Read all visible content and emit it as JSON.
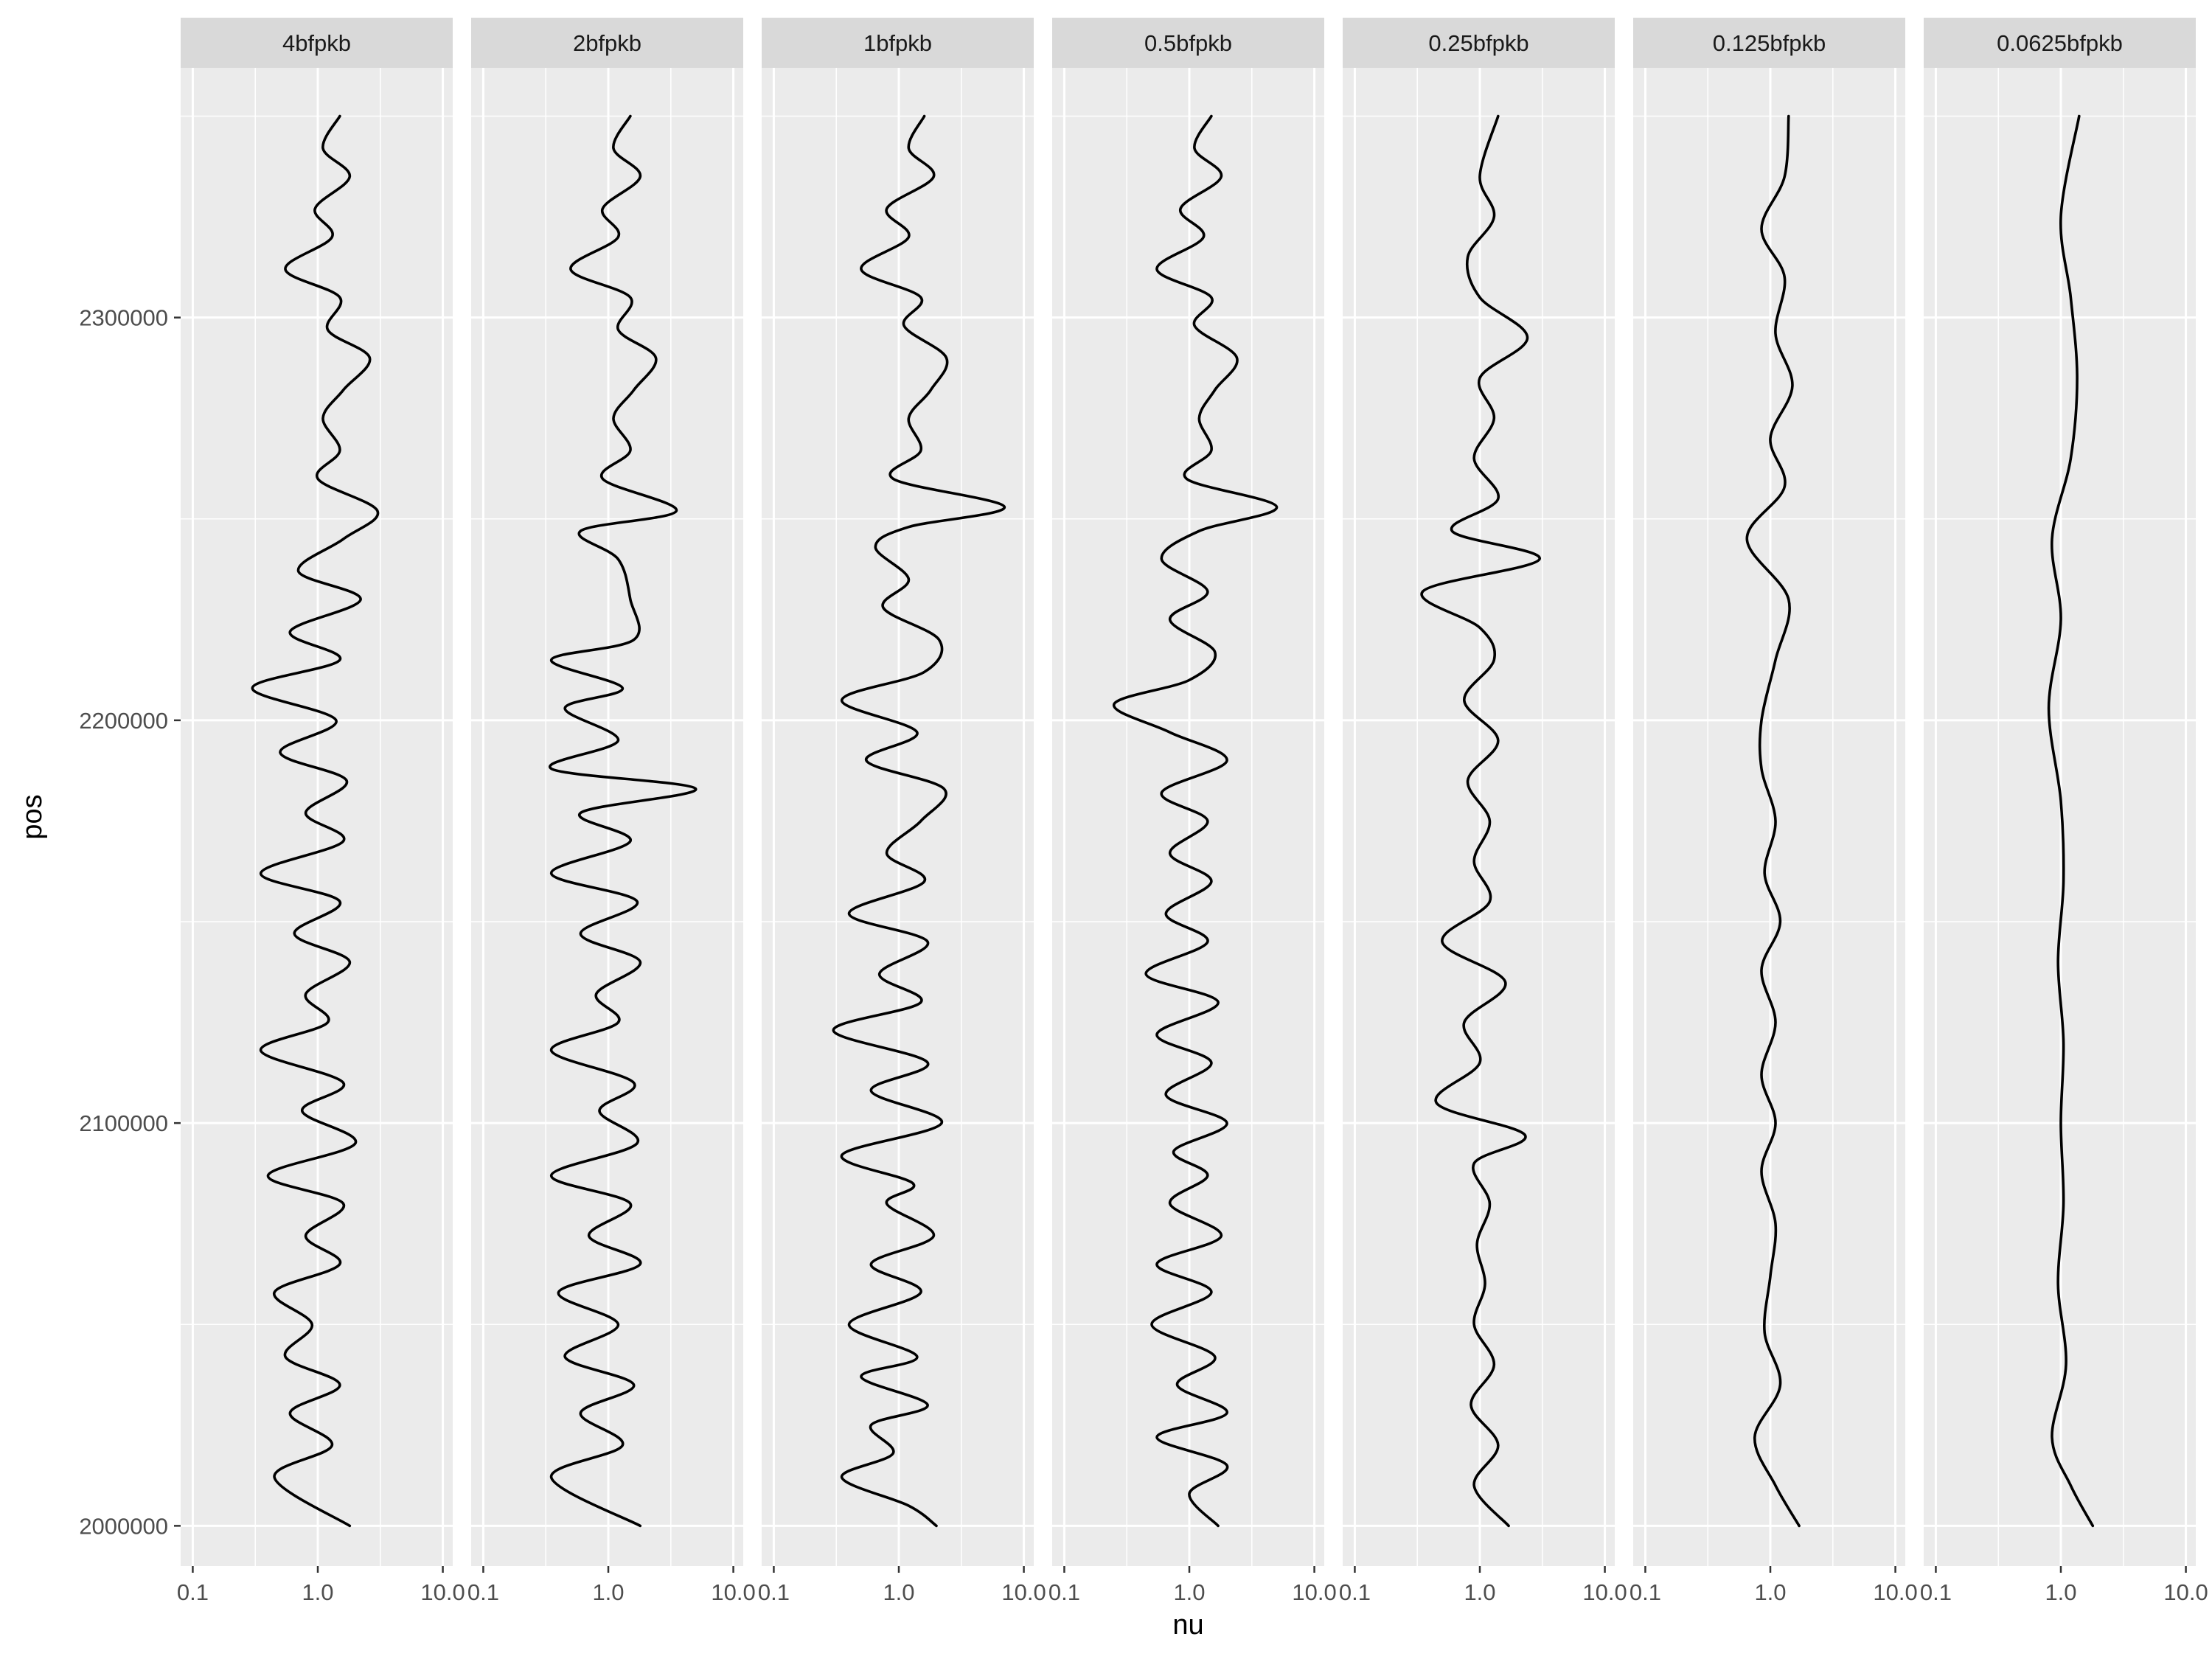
{
  "chart_data": {
    "type": "line",
    "xlabel": "nu",
    "ylabel": "pos",
    "x_scale": "log10",
    "xlim": [
      0.08,
      12
    ],
    "ylim": [
      1990000,
      2362000
    ],
    "x_ticks": [
      0.1,
      1.0,
      10.0
    ],
    "x_tick_labels": [
      "0.1",
      "1.0",
      "10.0"
    ],
    "y_ticks": [
      2000000,
      2100000,
      2200000,
      2300000
    ],
    "y_tick_labels": [
      "2000000",
      "2100000",
      "2200000",
      "2300000"
    ],
    "grid": true,
    "legend": "none",
    "panels": [
      {
        "label": "4bfpkb",
        "pos": [
          2000000,
          2012000,
          2020000,
          2028000,
          2035000,
          2042000,
          2050000,
          2058000,
          2065000,
          2072000,
          2080000,
          2087000,
          2095000,
          2103000,
          2110000,
          2118000,
          2125000,
          2132000,
          2140000,
          2147000,
          2155000,
          2162000,
          2170000,
          2177000,
          2185000,
          2192000,
          2200000,
          2208000,
          2215000,
          2222000,
          2230000,
          2237000,
          2245000,
          2252000,
          2260000,
          2267000,
          2275000,
          2282000,
          2290000,
          2297000,
          2305000,
          2312000,
          2320000,
          2327000,
          2335000,
          2342000,
          2350000
        ],
        "nu": [
          1.8,
          0.45,
          1.3,
          0.6,
          1.5,
          0.55,
          0.9,
          0.45,
          1.5,
          0.8,
          1.6,
          0.4,
          2.0,
          0.75,
          1.6,
          0.35,
          1.2,
          0.8,
          1.8,
          0.65,
          1.5,
          0.35,
          1.6,
          0.8,
          1.7,
          0.5,
          1.4,
          0.3,
          1.5,
          0.6,
          2.2,
          0.7,
          1.6,
          3.0,
          1.0,
          1.5,
          1.1,
          1.6,
          2.6,
          1.2,
          1.5,
          0.55,
          1.3,
          0.95,
          1.8,
          1.1,
          1.5
        ]
      },
      {
        "label": "2bfpkb",
        "pos": [
          2000000,
          2012000,
          2020000,
          2028000,
          2035000,
          2042000,
          2050000,
          2058000,
          2065000,
          2072000,
          2080000,
          2087000,
          2095000,
          2103000,
          2110000,
          2118000,
          2125000,
          2132000,
          2140000,
          2147000,
          2155000,
          2162000,
          2170000,
          2177000,
          2183000,
          2188000,
          2195000,
          2203000,
          2208000,
          2215000,
          2220000,
          2230000,
          2240000,
          2247000,
          2252000,
          2260000,
          2267000,
          2275000,
          2282000,
          2290000,
          2297000,
          2305000,
          2312000,
          2320000,
          2327000,
          2335000,
          2342000,
          2350000
        ],
        "nu": [
          1.8,
          0.35,
          1.3,
          0.6,
          1.6,
          0.45,
          1.2,
          0.4,
          1.8,
          0.7,
          1.5,
          0.35,
          1.7,
          0.85,
          1.6,
          0.35,
          1.2,
          0.8,
          1.8,
          0.6,
          1.7,
          0.35,
          1.5,
          0.6,
          5.0,
          0.35,
          1.2,
          0.45,
          1.3,
          0.35,
          1.6,
          1.5,
          1.2,
          0.6,
          3.5,
          0.9,
          1.5,
          1.1,
          1.6,
          2.4,
          1.2,
          1.5,
          0.5,
          1.2,
          0.9,
          1.8,
          1.1,
          1.5
        ]
      },
      {
        "label": "1bfpkb",
        "pos": [
          2000000,
          2005000,
          2012000,
          2018000,
          2025000,
          2030000,
          2037000,
          2042000,
          2050000,
          2058000,
          2065000,
          2072000,
          2080000,
          2085000,
          2092000,
          2100000,
          2108000,
          2115000,
          2123000,
          2130000,
          2137000,
          2145000,
          2152000,
          2160000,
          2167000,
          2175000,
          2183000,
          2190000,
          2197000,
          2205000,
          2212000,
          2220000,
          2228000,
          2235000,
          2243000,
          2248000,
          2253000,
          2260000,
          2267000,
          2275000,
          2282000,
          2290000,
          2298000,
          2305000,
          2312000,
          2320000,
          2327000,
          2335000,
          2342000,
          2350000
        ],
        "nu": [
          2.0,
          1.2,
          0.35,
          0.9,
          0.6,
          1.7,
          0.5,
          1.4,
          0.4,
          1.5,
          0.6,
          1.9,
          0.8,
          1.3,
          0.35,
          2.2,
          0.6,
          1.7,
          0.3,
          1.5,
          0.7,
          1.7,
          0.4,
          1.6,
          0.8,
          1.5,
          2.3,
          0.55,
          1.4,
          0.35,
          1.6,
          2.1,
          0.75,
          1.2,
          0.65,
          1.2,
          7.0,
          0.9,
          1.5,
          1.2,
          1.8,
          2.4,
          1.1,
          1.5,
          0.5,
          1.2,
          0.8,
          1.9,
          1.2,
          1.6
        ]
      },
      {
        "label": "0.5bfpkb",
        "pos": [
          2000000,
          2008000,
          2015000,
          2022000,
          2028000,
          2035000,
          2042000,
          2050000,
          2058000,
          2065000,
          2072000,
          2080000,
          2087000,
          2093000,
          2100000,
          2107000,
          2115000,
          2122000,
          2130000,
          2137000,
          2145000,
          2152000,
          2160000,
          2167000,
          2175000,
          2182000,
          2190000,
          2197000,
          2204000,
          2210000,
          2217000,
          2225000,
          2232000,
          2240000,
          2247000,
          2253000,
          2260000,
          2267000,
          2275000,
          2282000,
          2290000,
          2298000,
          2305000,
          2312000,
          2320000,
          2327000,
          2335000,
          2342000,
          2350000
        ],
        "nu": [
          1.7,
          1.0,
          2.0,
          0.55,
          2.0,
          0.8,
          1.6,
          0.5,
          1.5,
          0.55,
          1.8,
          0.7,
          1.4,
          0.75,
          2.0,
          0.65,
          1.5,
          0.55,
          1.7,
          0.45,
          1.4,
          0.65,
          1.5,
          0.7,
          1.4,
          0.6,
          2.0,
          0.7,
          0.25,
          1.0,
          1.6,
          0.7,
          1.4,
          0.6,
          1.2,
          5.0,
          0.95,
          1.5,
          1.2,
          1.6,
          2.4,
          1.1,
          1.5,
          0.55,
          1.3,
          0.85,
          1.8,
          1.1,
          1.5
        ]
      },
      {
        "label": "0.25bfpkb",
        "pos": [
          2000000,
          2010000,
          2020000,
          2030000,
          2040000,
          2050000,
          2060000,
          2070000,
          2080000,
          2090000,
          2097000,
          2105000,
          2115000,
          2125000,
          2135000,
          2145000,
          2155000,
          2165000,
          2175000,
          2185000,
          2195000,
          2205000,
          2215000,
          2223000,
          2232000,
          2240000,
          2247000,
          2255000,
          2265000,
          2275000,
          2285000,
          2295000,
          2305000,
          2315000,
          2325000,
          2335000,
          2350000
        ],
        "nu": [
          1.7,
          0.9,
          1.4,
          0.85,
          1.3,
          0.9,
          1.1,
          0.95,
          1.2,
          0.9,
          2.3,
          0.45,
          1.0,
          0.75,
          1.6,
          0.5,
          1.2,
          0.9,
          1.2,
          0.8,
          1.4,
          0.75,
          1.3,
          1.0,
          0.35,
          3.0,
          0.6,
          1.4,
          0.9,
          1.3,
          1.0,
          2.4,
          1.0,
          0.8,
          1.3,
          1.0,
          1.4
        ]
      },
      {
        "label": "0.125bfpkb",
        "pos": [
          2000000,
          2010000,
          2022000,
          2035000,
          2048000,
          2062000,
          2075000,
          2088000,
          2100000,
          2112000,
          2125000,
          2138000,
          2150000,
          2162000,
          2175000,
          2188000,
          2200000,
          2215000,
          2230000,
          2245000,
          2258000,
          2270000,
          2283000,
          2296000,
          2310000,
          2322000,
          2335000,
          2350000
        ],
        "nu": [
          1.7,
          1.1,
          0.75,
          1.2,
          0.9,
          1.0,
          1.1,
          0.85,
          1.1,
          0.85,
          1.1,
          0.85,
          1.2,
          0.9,
          1.1,
          0.85,
          0.85,
          1.1,
          1.4,
          0.65,
          1.3,
          1.0,
          1.5,
          1.1,
          1.3,
          0.85,
          1.3,
          1.4
        ]
      },
      {
        "label": "0.0625bfpkb",
        "pos": [
          2000000,
          2010000,
          2022000,
          2040000,
          2060000,
          2080000,
          2100000,
          2120000,
          2140000,
          2160000,
          2180000,
          2203000,
          2225000,
          2245000,
          2265000,
          2285000,
          2305000,
          2325000,
          2350000
        ],
        "nu": [
          1.8,
          1.2,
          0.85,
          1.1,
          0.95,
          1.05,
          1.0,
          1.05,
          0.95,
          1.05,
          1.0,
          0.8,
          1.0,
          0.85,
          1.2,
          1.35,
          1.2,
          1.0,
          1.4
        ]
      }
    ]
  }
}
